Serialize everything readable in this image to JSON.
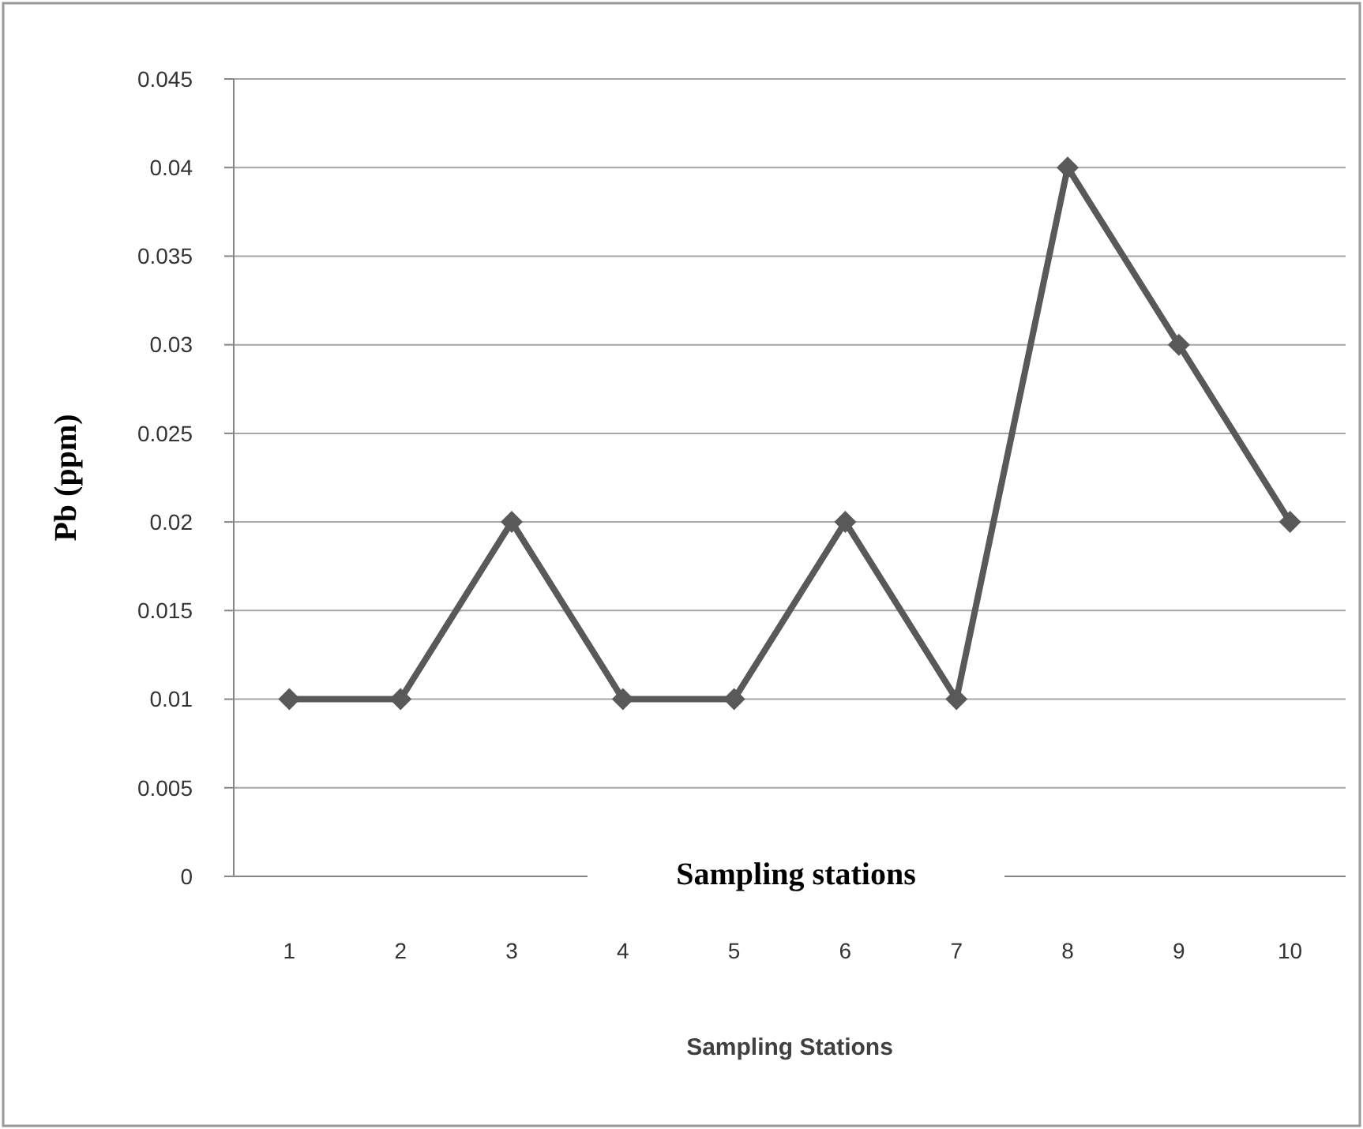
{
  "chart_data": {
    "type": "line",
    "xlabel": "Sampling Stations",
    "ylabel": "Pb (ppm)",
    "annotations": [
      "Sampling stations"
    ],
    "categories": [
      "1",
      "2",
      "3",
      "4",
      "5",
      "6",
      "7",
      "8",
      "9",
      "10"
    ],
    "series": [
      {
        "color": "#595959",
        "values": [
          0.01,
          0.01,
          0.02,
          0.01,
          0.01,
          0.02,
          0.01,
          0.04,
          0.03,
          0.02
        ]
      }
    ],
    "ylim": [
      0,
      0.045
    ],
    "yticks": [
      0,
      0.005,
      0.01,
      0.015,
      0.02,
      0.025,
      0.03,
      0.035,
      0.04,
      0.045
    ],
    "grid": "y",
    "marker": "diamond",
    "line_style": "solid"
  }
}
